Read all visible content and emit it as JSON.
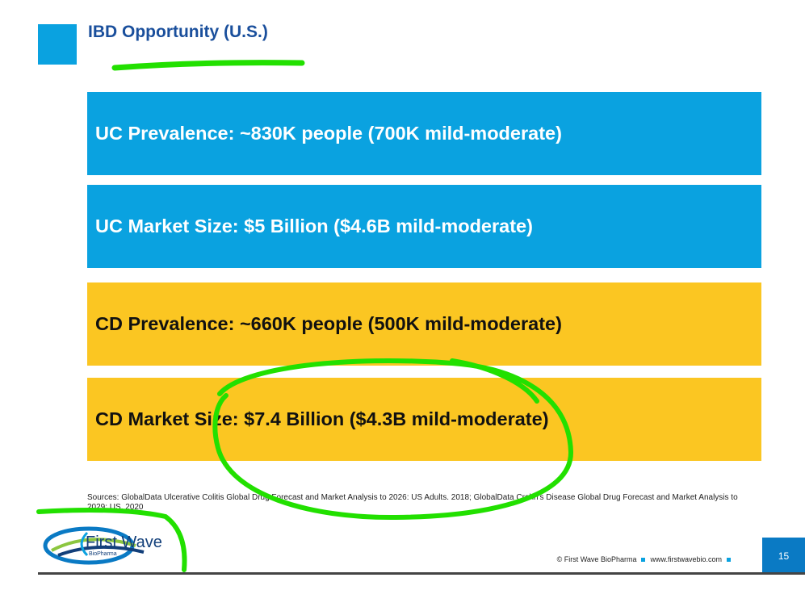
{
  "slide": {
    "title": "IBD Opportunity (U.S.)",
    "page_number": "15"
  },
  "bars": [
    {
      "text": "UC Prevalence: ~830K people (700K mild-moderate)",
      "color": "#0aa2e0"
    },
    {
      "text": "UC Market Size: $5 Billion ($4.6B mild-moderate)",
      "color": "#0aa2e0"
    },
    {
      "text": "CD Prevalence: ~660K people (500K mild-moderate)",
      "color": "#fbc622"
    },
    {
      "text": "CD Market Size: $7.4 Billion ($4.3B mild-moderate)",
      "color": "#fbc622"
    }
  ],
  "sources": "Sources: GlobalData Ulcerative Colitis Global Drug Forecast and Market Analysis to 2026: US Adults. 2018; GlobalData Crohn's Disease Global Drug Forecast and Market Analysis to 2029: US. 2020",
  "logo": {
    "name": "First Wave",
    "subtitle": "BioPharma"
  },
  "footer": {
    "copyright": "© First Wave BioPharma",
    "website": "www.firstwavebio.com"
  },
  "colors": {
    "accent_blue": "#0aa2e0",
    "accent_yellow": "#fbc622",
    "title_blue": "#1a4f9c",
    "annotation_green": "#22e000"
  }
}
